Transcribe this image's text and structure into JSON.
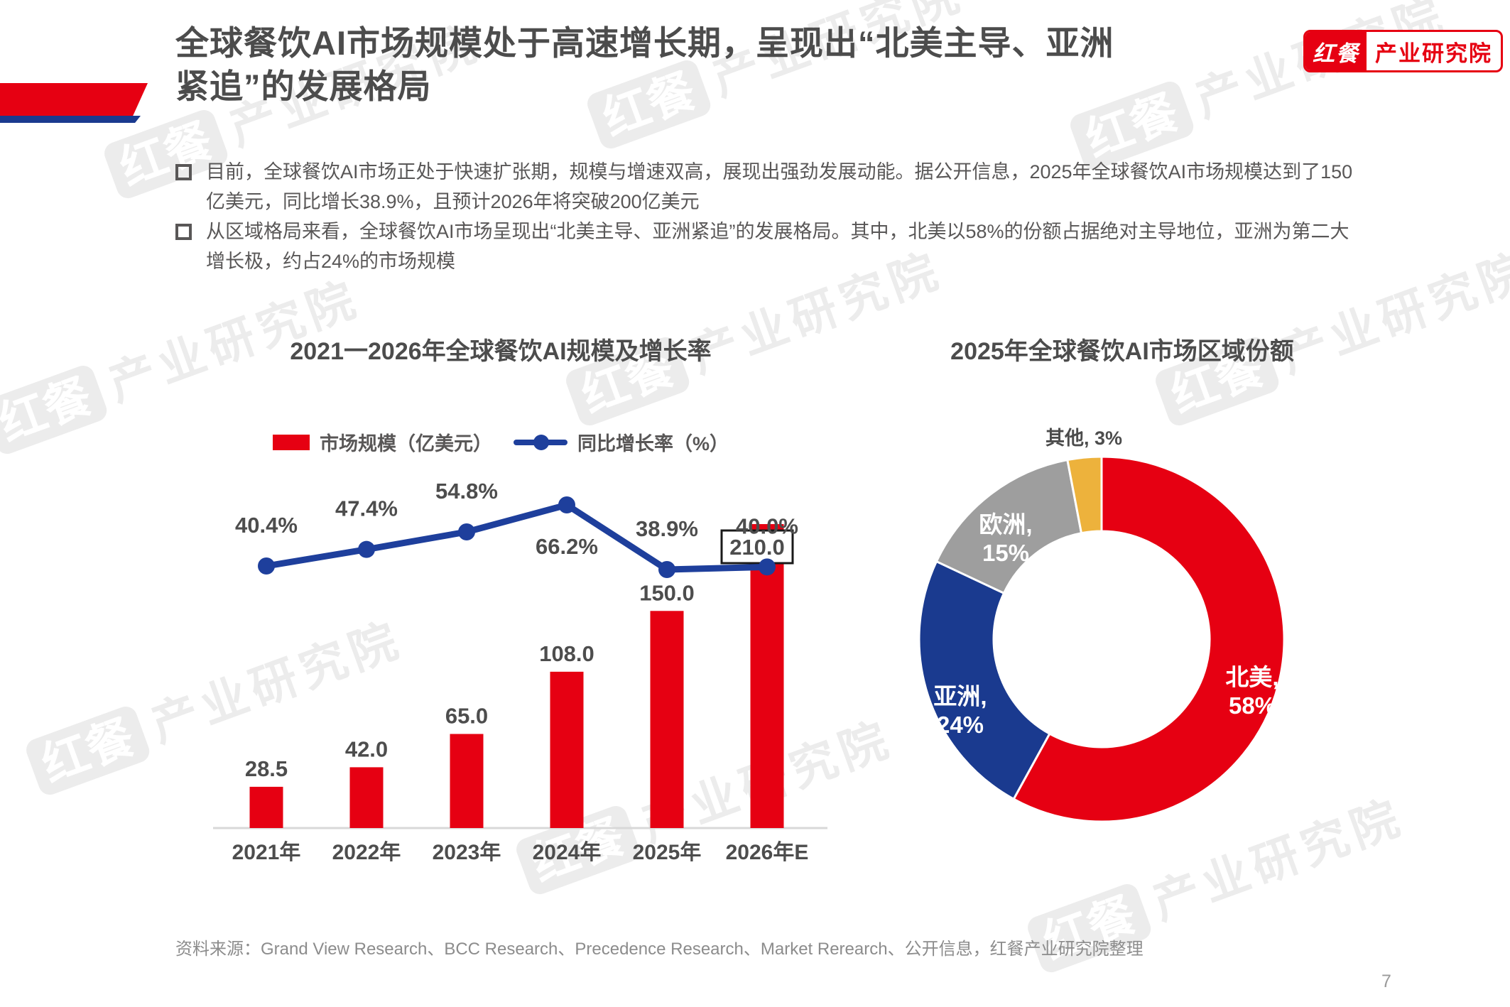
{
  "header": {
    "title_line1": "全球餐饮AI市场规模处于高速增长期，呈现出“北美主导、亚洲",
    "title_line2": "紧追”的发展格局",
    "logo_brand": "红餐",
    "logo_division": "产业研究院"
  },
  "bullets": [
    {
      "text": "目前，全球餐饮AI市场正处于快速扩张期，规模与增速双高，展现出强劲发展动能。据公开信息，2025年全球餐饮AI市场规模达到了150亿美元，同比增长38.9%，且预计2026年将突破200亿美元"
    },
    {
      "text": "从区域格局来看，全球餐饮AI市场呈现出“北美主导、亚洲紧追”的发展格局。其中，北美以58%的份额占据绝对主导地位，亚洲为第二大增长极，约占24%的市场规模"
    }
  ],
  "watermark": {
    "brand": "红餐",
    "text": "产业研究院"
  },
  "chart_data": [
    {
      "type": "bar",
      "title": "2021一2026年全球餐饮AI规模及增长率",
      "categories": [
        "2021年",
        "2022年",
        "2023年",
        "2024年",
        "2025年",
        "2026年E"
      ],
      "series": [
        {
          "name": "市场规模（亿美元）",
          "type": "bar",
          "values": [
            28.5,
            42.0,
            65.0,
            108.0,
            150.0,
            210.0
          ],
          "color": "#E60012"
        },
        {
          "name": "同比增长率（%）",
          "type": "line",
          "values": [
            40.4,
            47.4,
            54.8,
            66.2,
            38.9,
            40.0
          ],
          "color": "#1E3F9C"
        }
      ],
      "value_labels": [
        "28.5",
        "42.0",
        "65.0",
        "108.0",
        "150.0",
        "210.0"
      ],
      "growth_labels": [
        "40.4%",
        "47.4%",
        "54.8%",
        "66.2%",
        "38.9%",
        "40.0%"
      ],
      "highlight_box_value": "210.0",
      "legend_position": "top",
      "grid": false,
      "ylim": [
        0,
        230
      ],
      "axis_color": "#D8D8D8"
    },
    {
      "type": "pie",
      "subtype": "donut",
      "title": "2025年全球餐饮AI市场区域份额",
      "slices": [
        {
          "label": "北美",
          "pct": 58,
          "value": "58%",
          "color": "#E60012",
          "label_inside": true
        },
        {
          "label": "亚洲",
          "pct": 24,
          "value": "24%",
          "color": "#1A3A8F",
          "label_inside": true
        },
        {
          "label": "欧洲",
          "pct": 15,
          "value": "15%",
          "color": "#9E9E9E",
          "label_inside": true
        },
        {
          "label": "其他",
          "pct": 3,
          "value": "3%",
          "color": "#EDB23C",
          "label_inside": false
        }
      ],
      "start_angle_deg": 0,
      "direction": "clockwise",
      "legend_position": "none"
    }
  ],
  "footer": {
    "source": "资料来源：Grand View Research、BCC Research、Precedence Research、Market Rerearch、公开信息，红餐产业研究院整理",
    "page_number": "7"
  }
}
